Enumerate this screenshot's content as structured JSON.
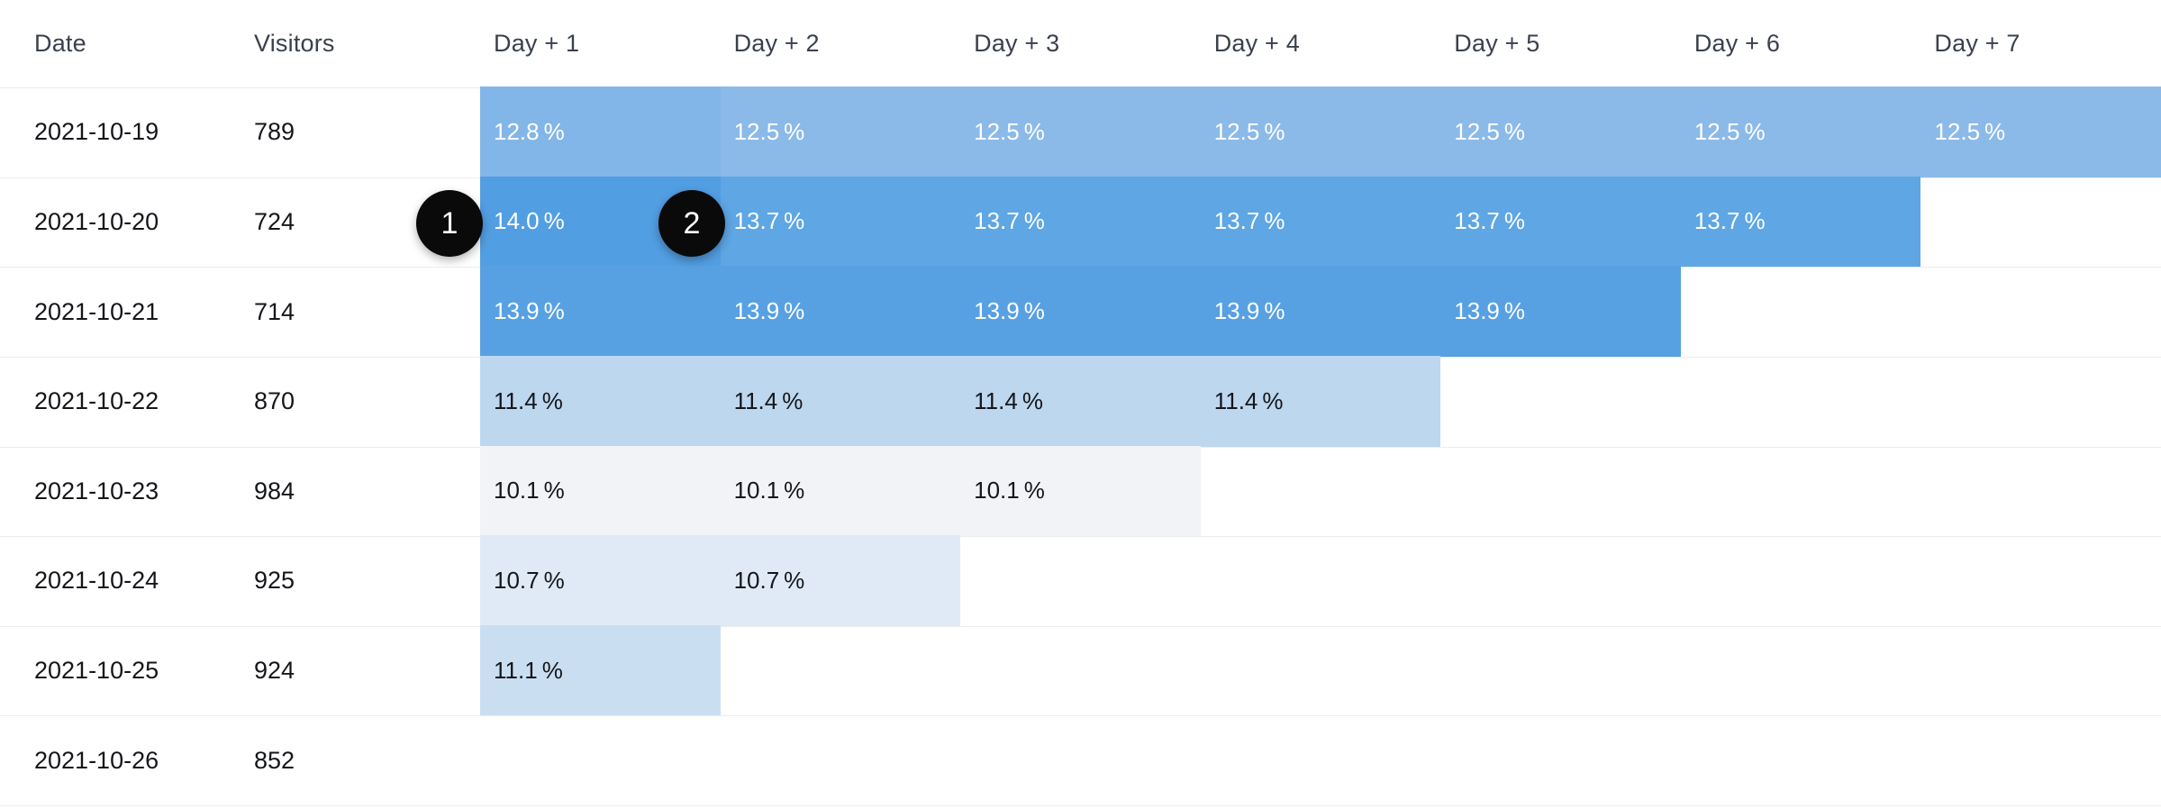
{
  "table": {
    "columns": [
      "Date",
      "Visitors",
      "Day + 1",
      "Day + 2",
      "Day + 3",
      "Day + 4",
      "Day + 5",
      "Day + 6",
      "Day + 7"
    ],
    "rows": [
      {
        "date": "2021-10-19",
        "visitors": "789",
        "cells": [
          {
            "value": "12.8",
            "unit": "%",
            "bg": "#83b6e8",
            "tone": "light"
          },
          {
            "value": "12.5",
            "unit": "%",
            "bg": "#8bbae9",
            "tone": "light"
          },
          {
            "value": "12.5",
            "unit": "%",
            "bg": "#8bbae9",
            "tone": "light"
          },
          {
            "value": "12.5",
            "unit": "%",
            "bg": "#8bbae9",
            "tone": "light"
          },
          {
            "value": "12.5",
            "unit": "%",
            "bg": "#8bbae9",
            "tone": "light"
          },
          {
            "value": "12.5",
            "unit": "%",
            "bg": "#8bbae9",
            "tone": "light"
          },
          {
            "value": "12.5",
            "unit": "%",
            "bg": "#8bbae9",
            "tone": "light"
          }
        ]
      },
      {
        "date": "2021-10-20",
        "visitors": "724",
        "cells": [
          {
            "value": "14.0",
            "unit": "%",
            "bg": "#529ee2",
            "tone": "light"
          },
          {
            "value": "13.7",
            "unit": "%",
            "bg": "#5ea6e4",
            "tone": "light"
          },
          {
            "value": "13.7",
            "unit": "%",
            "bg": "#5ea6e4",
            "tone": "light"
          },
          {
            "value": "13.7",
            "unit": "%",
            "bg": "#5ea6e4",
            "tone": "light"
          },
          {
            "value": "13.7",
            "unit": "%",
            "bg": "#5ea6e4",
            "tone": "light"
          },
          {
            "value": "13.7",
            "unit": "%",
            "bg": "#5ea6e4",
            "tone": "light"
          },
          null
        ]
      },
      {
        "date": "2021-10-21",
        "visitors": "714",
        "cells": [
          {
            "value": "13.9",
            "unit": "%",
            "bg": "#57a1e3",
            "tone": "light"
          },
          {
            "value": "13.9",
            "unit": "%",
            "bg": "#57a1e3",
            "tone": "light"
          },
          {
            "value": "13.9",
            "unit": "%",
            "bg": "#57a1e3",
            "tone": "light"
          },
          {
            "value": "13.9",
            "unit": "%",
            "bg": "#57a1e3",
            "tone": "light"
          },
          {
            "value": "13.9",
            "unit": "%",
            "bg": "#57a1e3",
            "tone": "light"
          },
          null,
          null
        ]
      },
      {
        "date": "2021-10-22",
        "visitors": "870",
        "cells": [
          {
            "value": "11.4",
            "unit": "%",
            "bg": "#bdd7ef",
            "tone": "dark"
          },
          {
            "value": "11.4",
            "unit": "%",
            "bg": "#bdd7ef",
            "tone": "dark"
          },
          {
            "value": "11.4",
            "unit": "%",
            "bg": "#bdd7ef",
            "tone": "dark"
          },
          {
            "value": "11.4",
            "unit": "%",
            "bg": "#bdd7ef",
            "tone": "dark"
          },
          null,
          null,
          null
        ]
      },
      {
        "date": "2021-10-23",
        "visitors": "984",
        "cells": [
          {
            "value": "10.1",
            "unit": "%",
            "bg": "#f1f3f6",
            "tone": "dark"
          },
          {
            "value": "10.1",
            "unit": "%",
            "bg": "#f1f3f6",
            "tone": "dark"
          },
          {
            "value": "10.1",
            "unit": "%",
            "bg": "#f1f3f6",
            "tone": "dark"
          },
          null,
          null,
          null,
          null
        ]
      },
      {
        "date": "2021-10-24",
        "visitors": "925",
        "cells": [
          {
            "value": "10.7",
            "unit": "%",
            "bg": "#dfeaf6",
            "tone": "dark"
          },
          {
            "value": "10.7",
            "unit": "%",
            "bg": "#dfeaf6",
            "tone": "dark"
          },
          null,
          null,
          null,
          null,
          null
        ]
      },
      {
        "date": "2021-10-25",
        "visitors": "924",
        "cells": [
          {
            "value": "11.1",
            "unit": "%",
            "bg": "#cadef2",
            "tone": "dark"
          },
          null,
          null,
          null,
          null,
          null,
          null
        ]
      },
      {
        "date": "2021-10-26",
        "visitors": "852",
        "cells": [
          null,
          null,
          null,
          null,
          null,
          null,
          null
        ]
      }
    ]
  },
  "callouts": [
    {
      "label": "1",
      "row": "2021-10-20",
      "column": "Day + 1"
    },
    {
      "label": "2",
      "row": "2021-10-20",
      "column": "Day + 2"
    }
  ],
  "colors": {
    "blue_strongest": "#529ee2",
    "blue_13_9": "#57a1e3",
    "blue_13_7": "#5ea6e4",
    "blue_12_8": "#83b6e8",
    "blue_12_5": "#8bbae9",
    "blue_11_4": "#bdd7ef",
    "blue_11_1": "#cadef2",
    "blue_10_7": "#dfeaf6",
    "blue_10_1": "#f1f3f6",
    "separator": "#ececec",
    "header_text": "#3a414d",
    "body_text": "#14161a",
    "cell_text_light": "#ffffff",
    "callout_bg": "#0a0a0a",
    "callout_text": "#ffffff",
    "background": "#ffffff"
  },
  "chart_data": {
    "type": "heatmap",
    "x_labels": [
      "Day + 1",
      "Day + 2",
      "Day + 3",
      "Day + 4",
      "Day + 5",
      "Day + 6",
      "Day + 7"
    ],
    "y_labels": [
      "2021-10-19",
      "2021-10-20",
      "2021-10-21",
      "2021-10-22",
      "2021-10-23",
      "2021-10-24",
      "2021-10-25",
      "2021-10-26"
    ],
    "visitors": [
      789,
      724,
      714,
      870,
      984,
      925,
      924,
      852
    ],
    "unit": "%",
    "values": [
      [
        12.8,
        12.5,
        12.5,
        12.5,
        12.5,
        12.5,
        12.5
      ],
      [
        14.0,
        13.7,
        13.7,
        13.7,
        13.7,
        13.7,
        null
      ],
      [
        13.9,
        13.9,
        13.9,
        13.9,
        13.9,
        null,
        null
      ],
      [
        11.4,
        11.4,
        11.4,
        11.4,
        null,
        null,
        null
      ],
      [
        10.1,
        10.1,
        10.1,
        null,
        null,
        null,
        null
      ],
      [
        10.7,
        10.7,
        null,
        null,
        null,
        null,
        null
      ],
      [
        11.1,
        null,
        null,
        null,
        null,
        null,
        null
      ],
      [
        null,
        null,
        null,
        null,
        null,
        null,
        null
      ]
    ],
    "legend_position": "none",
    "grid": "horizontal-hairlines",
    "annotations": [
      {
        "label": "1",
        "row": "2021-10-20",
        "column": "Day + 1"
      },
      {
        "label": "2",
        "row": "2021-10-20",
        "column": "Day + 2"
      }
    ]
  }
}
